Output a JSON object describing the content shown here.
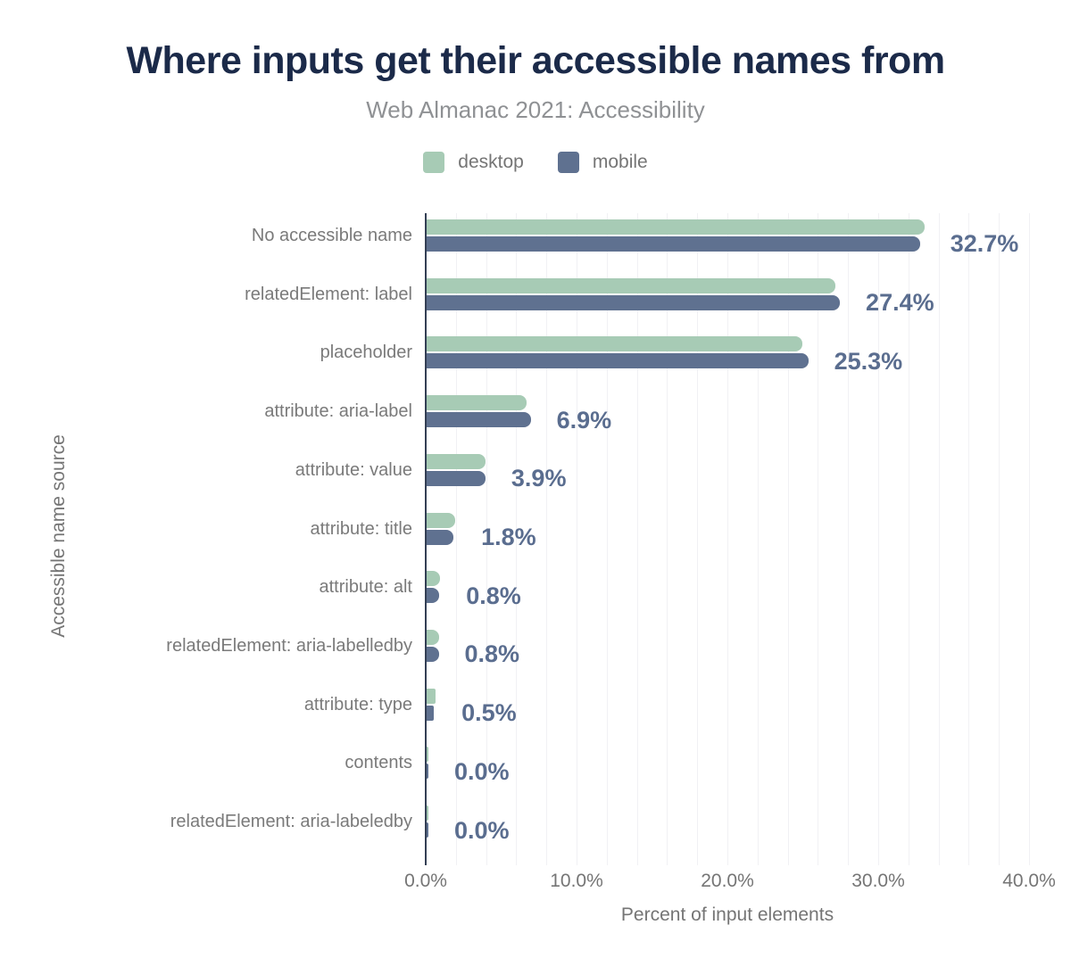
{
  "header": {
    "title": "Where inputs get their accessible names from",
    "subtitle": "Web Almanac 2021: Accessibility"
  },
  "legend": {
    "items": [
      {
        "label": "desktop",
        "color": "#a7cbb5"
      },
      {
        "label": "mobile",
        "color": "#5f7190"
      }
    ]
  },
  "colors": {
    "title": "#1b2a49",
    "subtitle": "#8f9194",
    "muted_text": "#757575",
    "category_text": "#7a7a7a",
    "desktop_bar": "#a7cbb5",
    "mobile_bar": "#5f7190",
    "value_label": "#5a6d8f",
    "axis_line": "#333f54",
    "gridline": "#f1f1f4"
  },
  "chart_data": {
    "type": "bar",
    "orientation": "horizontal",
    "title": "Where inputs get their accessible names from",
    "subtitle": "Web Almanac 2021: Accessibility",
    "xlabel": "Percent of input elements",
    "ylabel": "Accessible name source",
    "xlim": [
      0,
      40
    ],
    "x_tick_values": [
      0,
      10,
      20,
      30,
      40
    ],
    "x_tick_labels": [
      "0.0%",
      "10.0%",
      "20.0%",
      "30.0%",
      "40.0%"
    ],
    "grid_step_percent": 2,
    "legend_position": "top-center",
    "categories": [
      "No accessible name",
      "relatedElement: label",
      "placeholder",
      "attribute: aria-label",
      "attribute: value",
      "attribute: title",
      "attribute: alt",
      "relatedElement: aria-labelledby",
      "attribute: type",
      "contents",
      "relatedElement: aria-labeledby"
    ],
    "series": [
      {
        "name": "desktop",
        "color": "#a7cbb5",
        "values": [
          33.0,
          27.1,
          24.9,
          6.6,
          3.9,
          1.9,
          0.9,
          0.8,
          0.6,
          0.0,
          0.0
        ]
      },
      {
        "name": "mobile",
        "color": "#5f7190",
        "values": [
          32.7,
          27.4,
          25.3,
          6.9,
          3.9,
          1.8,
          0.8,
          0.8,
          0.5,
          0.0,
          0.0
        ]
      }
    ],
    "value_labels": [
      "32.7%",
      "27.4%",
      "25.3%",
      "6.9%",
      "3.9%",
      "1.8%",
      "0.8%",
      "0.8%",
      "0.5%",
      "0.0%",
      "0.0%"
    ]
  }
}
